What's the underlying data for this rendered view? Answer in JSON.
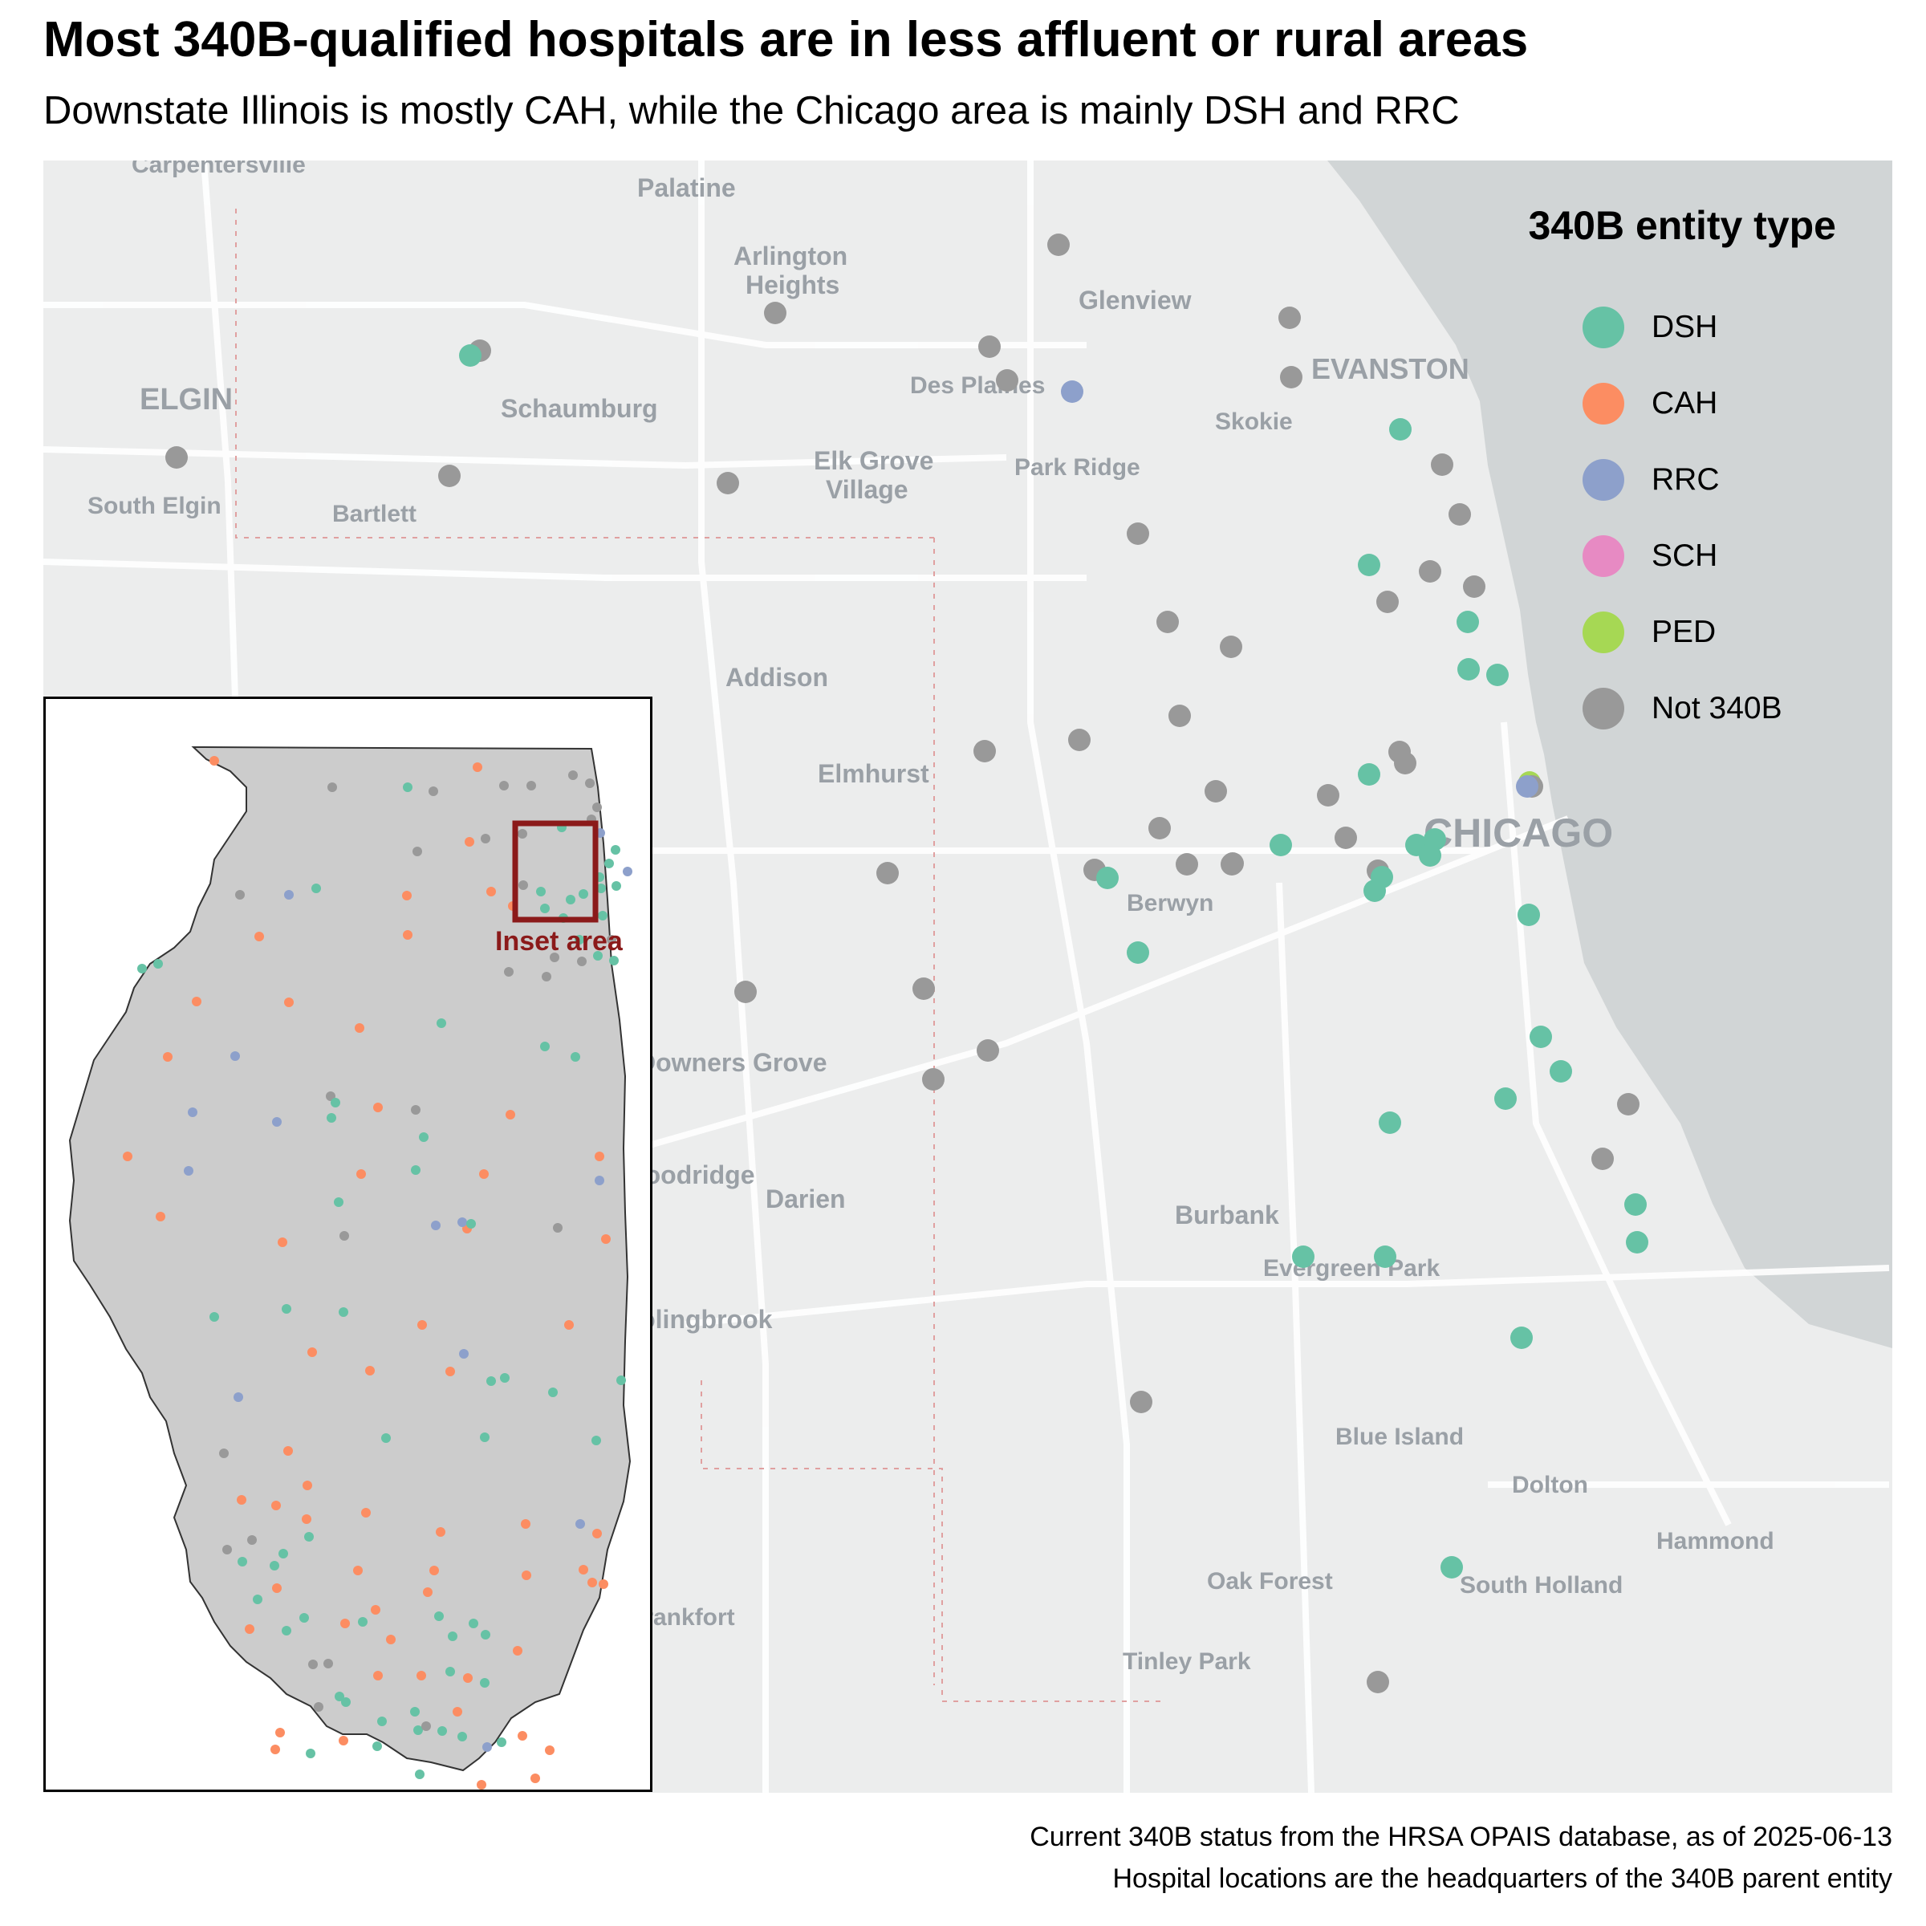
{
  "title": "Most 340B-qualified hospitals are in less affluent or rural areas",
  "subtitle": "Downstate Illinois is mostly CAH, while the Chicago area is mainly DSH and RRC",
  "legend": {
    "title": "340B entity type",
    "items": [
      {
        "label": "DSH",
        "color": "#66c2a5"
      },
      {
        "label": "CAH",
        "color": "#fc8d62"
      },
      {
        "label": "RRC",
        "color": "#8da0cb"
      },
      {
        "label": "SCH",
        "color": "#e78ac3"
      },
      {
        "label": "PED",
        "color": "#a6d854"
      },
      {
        "label": "Not 340B",
        "color": "#999999"
      }
    ]
  },
  "map_labels": [
    "Carpentersville",
    "Palatine",
    "Arlington Heights",
    "Glenview",
    "EVANSTON",
    "ELGIN",
    "Schaumburg",
    "Des Plaines",
    "Skokie",
    "Elk Grove Village",
    "Park Ridge",
    "South Elgin",
    "Bartlett",
    "Addison",
    "Elmhurst",
    "CHICAGO",
    "Berwyn",
    "Downers Grove",
    "Woodridge",
    "Darien",
    "Burbank",
    "Evergreen Park",
    "Bolingbrook",
    "Blue Island",
    "Dolton",
    "Hammond",
    "Oak Forest",
    "South Holland",
    "Tinley Park",
    "Frankfort"
  ],
  "inset_label": "Inset area",
  "caption": [
    "Current 340B status from the HRSA OPAIS database, as of 2025-06-13",
    "Hospital locations are the headquarters of the 340B parent entity"
  ],
  "colors": {
    "water": "#d1d5d6",
    "land": "#eceded",
    "state": "#cccccc",
    "inset_box": "#8b1a1a"
  }
}
